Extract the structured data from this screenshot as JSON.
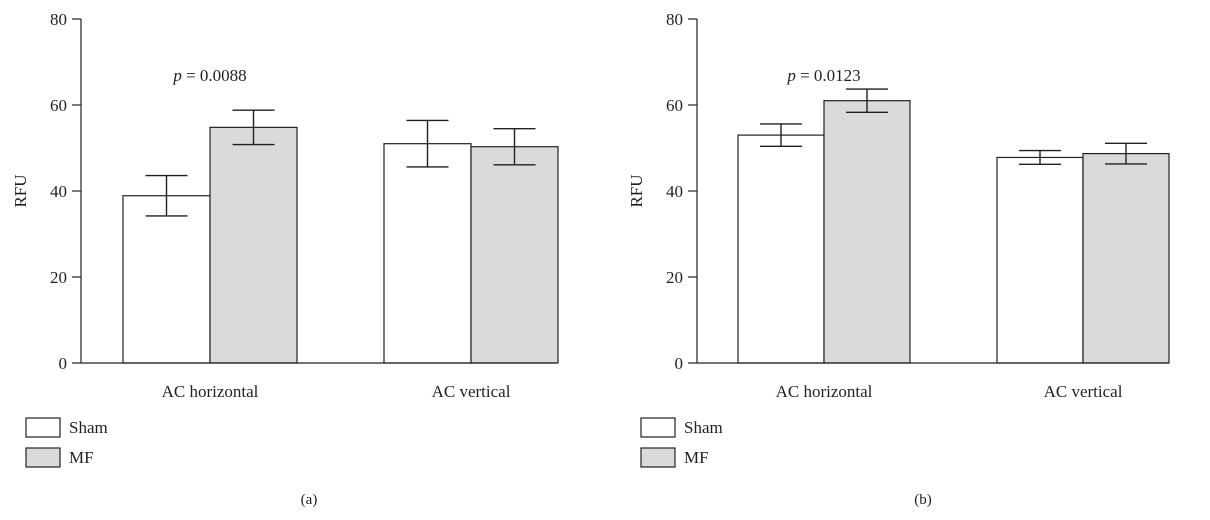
{
  "colors": {
    "axis": "#231f20",
    "sham_fill": "#ffffff",
    "mf_fill": "#d9dadc"
  },
  "legend_position": "bottom-left",
  "chart_data": [
    {
      "type": "bar",
      "panel_label": "(a)",
      "ylabel": "RFU",
      "ylim": [
        0,
        80
      ],
      "yticks": [
        0,
        20,
        40,
        60,
        80
      ],
      "categories": [
        "AC horizontal",
        "AC vertical"
      ],
      "series": [
        {
          "name": "Sham",
          "color": "#ffffff",
          "values": [
            38.9,
            51.0
          ],
          "err": [
            4.7,
            5.4
          ]
        },
        {
          "name": "MF",
          "color": "#d9dadc",
          "values": [
            54.8,
            50.3
          ],
          "err": [
            4.0,
            4.2
          ]
        }
      ],
      "annotations": [
        {
          "text_italic": "p",
          "text": " = 0.0088",
          "category": "AC horizontal"
        }
      ],
      "grid": false
    },
    {
      "type": "bar",
      "panel_label": "(b)",
      "ylabel": "RFU",
      "ylim": [
        0,
        80
      ],
      "yticks": [
        0,
        20,
        40,
        60,
        80
      ],
      "categories": [
        "AC horizontal",
        "AC vertical"
      ],
      "series": [
        {
          "name": "Sham",
          "color": "#ffffff",
          "values": [
            53.0,
            47.8
          ],
          "err": [
            2.6,
            1.6
          ]
        },
        {
          "name": "MF",
          "color": "#d9dadc",
          "values": [
            61.0,
            48.7
          ],
          "err": [
            2.7,
            2.4
          ]
        }
      ],
      "annotations": [
        {
          "text_italic": "p",
          "text": " = 0.0123",
          "category": "AC horizontal"
        }
      ],
      "grid": false
    }
  ]
}
